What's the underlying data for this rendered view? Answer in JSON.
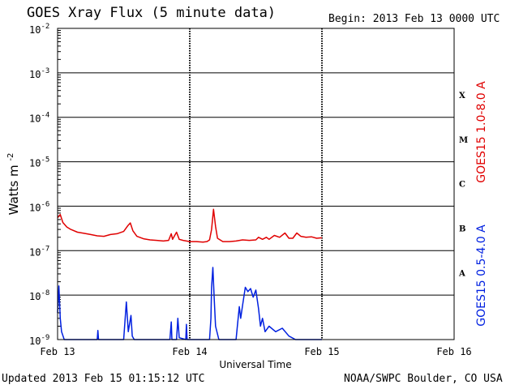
{
  "header": {
    "title": "GOES Xray Flux (5 minute data)",
    "begin": "Begin:  2013 Feb 13 0000 UTC"
  },
  "footer": {
    "updated": "Updated 2013 Feb 15 01:15:12 UTC",
    "credit": "NOAA/SWPC Boulder, CO USA"
  },
  "chart_data": {
    "type": "line",
    "title": "GOES Xray Flux (5 minute data)",
    "xlabel": "Universal Time",
    "ylabel": "Watts m",
    "ylabel_sup": "-2",
    "y_scale": "log",
    "ylim": [
      1e-09,
      0.01
    ],
    "y_ticks": [
      {
        "base": "10",
        "exp": "-2",
        "value": 0.01
      },
      {
        "base": "10",
        "exp": "-3",
        "value": 0.001
      },
      {
        "base": "10",
        "exp": "-4",
        "value": 0.0001
      },
      {
        "base": "10",
        "exp": "-5",
        "value": 1e-05
      },
      {
        "base": "10",
        "exp": "-6",
        "value": 1e-06
      },
      {
        "base": "10",
        "exp": "-7",
        "value": 1e-07
      },
      {
        "base": "10",
        "exp": "-8",
        "value": 1e-08
      },
      {
        "base": "10",
        "exp": "-9",
        "value": 1e-09
      }
    ],
    "xlim_days": [
      0,
      3
    ],
    "x_ticks": [
      {
        "label": "Feb 13",
        "day": 0
      },
      {
        "label": "Feb 14",
        "day": 1
      },
      {
        "label": "Feb 15",
        "day": 2
      },
      {
        "label": "Feb 16",
        "day": 3
      }
    ],
    "flare_classes": [
      {
        "label": "X",
        "value": 0.00032
      },
      {
        "label": "M",
        "value": 3.2e-05
      },
      {
        "label": "C",
        "value": 3.2e-06
      },
      {
        "label": "B",
        "value": 3.2e-07
      },
      {
        "label": "A",
        "value": 3.2e-08
      }
    ],
    "grid": true,
    "series": [
      {
        "name": "GOES15 1.0-8.0 A",
        "color": "#e00000",
        "points": [
          [
            0.0,
            5.5e-07
          ],
          [
            0.02,
            6.5e-07
          ],
          [
            0.04,
            4.3e-07
          ],
          [
            0.07,
            3.4e-07
          ],
          [
            0.1,
            3e-07
          ],
          [
            0.15,
            2.6e-07
          ],
          [
            0.2,
            2.45e-07
          ],
          [
            0.25,
            2.3e-07
          ],
          [
            0.3,
            2.15e-07
          ],
          [
            0.35,
            2.1e-07
          ],
          [
            0.4,
            2.3e-07
          ],
          [
            0.45,
            2.4e-07
          ],
          [
            0.5,
            2.7e-07
          ],
          [
            0.53,
            3.6e-07
          ],
          [
            0.55,
            4.2e-07
          ],
          [
            0.57,
            2.8e-07
          ],
          [
            0.6,
            2.1e-07
          ],
          [
            0.65,
            1.85e-07
          ],
          [
            0.7,
            1.75e-07
          ],
          [
            0.75,
            1.7e-07
          ],
          [
            0.8,
            1.65e-07
          ],
          [
            0.84,
            1.7e-07
          ],
          [
            0.86,
            2.4e-07
          ],
          [
            0.87,
            1.8e-07
          ],
          [
            0.9,
            2.6e-07
          ],
          [
            0.92,
            1.8e-07
          ],
          [
            0.95,
            1.7e-07
          ],
          [
            1.0,
            1.6e-07
          ],
          [
            1.05,
            1.6e-07
          ],
          [
            1.1,
            1.55e-07
          ],
          [
            1.13,
            1.6e-07
          ],
          [
            1.15,
            1.75e-07
          ],
          [
            1.165,
            3e-07
          ],
          [
            1.18,
            8.5e-07
          ],
          [
            1.195,
            3.5e-07
          ],
          [
            1.21,
            1.9e-07
          ],
          [
            1.25,
            1.6e-07
          ],
          [
            1.3,
            1.6e-07
          ],
          [
            1.35,
            1.65e-07
          ],
          [
            1.4,
            1.75e-07
          ],
          [
            1.45,
            1.7e-07
          ],
          [
            1.5,
            1.75e-07
          ],
          [
            1.52,
            2e-07
          ],
          [
            1.55,
            1.8e-07
          ],
          [
            1.58,
            2e-07
          ],
          [
            1.6,
            1.8e-07
          ],
          [
            1.64,
            2.2e-07
          ],
          [
            1.68,
            2e-07
          ],
          [
            1.72,
            2.5e-07
          ],
          [
            1.75,
            1.9e-07
          ],
          [
            1.78,
            1.9e-07
          ],
          [
            1.81,
            2.5e-07
          ],
          [
            1.84,
            2.1e-07
          ],
          [
            1.88,
            2e-07
          ],
          [
            1.92,
            2.05e-07
          ],
          [
            1.96,
            1.9e-07
          ],
          [
            2.0,
            1.95e-07
          ]
        ]
      },
      {
        "name": "GOES15 0.5-4.0 A",
        "color": "#0020e0",
        "points": [
          [
            0.0,
            4e-09
          ],
          [
            0.01,
            1.6e-08
          ],
          [
            0.02,
            3e-09
          ],
          [
            0.03,
            1.5e-09
          ],
          [
            0.05,
            1e-09
          ],
          [
            0.3,
            1e-09
          ],
          [
            0.305,
            1.6e-09
          ],
          [
            0.31,
            1e-09
          ],
          [
            0.5,
            1e-09
          ],
          [
            0.52,
            7e-09
          ],
          [
            0.535,
            1.5e-09
          ],
          [
            0.555,
            3.5e-09
          ],
          [
            0.565,
            1.2e-09
          ],
          [
            0.58,
            1e-09
          ],
          [
            0.85,
            1e-09
          ],
          [
            0.86,
            2.5e-09
          ],
          [
            0.865,
            1e-09
          ],
          [
            0.9,
            1e-09
          ],
          [
            0.91,
            3e-09
          ],
          [
            0.92,
            1.1e-09
          ],
          [
            0.97,
            1e-09
          ],
          [
            0.975,
            2.2e-09
          ],
          [
            0.98,
            1e-09
          ],
          [
            1.15,
            1e-09
          ],
          [
            1.16,
            3e-09
          ],
          [
            1.165,
            1.5e-08
          ],
          [
            1.175,
            4.2e-08
          ],
          [
            1.185,
            8e-09
          ],
          [
            1.195,
            2e-09
          ],
          [
            1.22,
            1e-09
          ],
          [
            1.35,
            1e-09
          ],
          [
            1.36,
            2e-09
          ],
          [
            1.375,
            5.5e-09
          ],
          [
            1.385,
            3e-09
          ],
          [
            1.4,
            6e-09
          ],
          [
            1.42,
            1.5e-08
          ],
          [
            1.44,
            1.2e-08
          ],
          [
            1.46,
            1.4e-08
          ],
          [
            1.48,
            9e-09
          ],
          [
            1.5,
            1.3e-08
          ],
          [
            1.52,
            5e-09
          ],
          [
            1.535,
            2e-09
          ],
          [
            1.55,
            3e-09
          ],
          [
            1.57,
            1.5e-09
          ],
          [
            1.6,
            2e-09
          ],
          [
            1.65,
            1.5e-09
          ],
          [
            1.7,
            1.8e-09
          ],
          [
            1.75,
            1.2e-09
          ],
          [
            1.8,
            1e-09
          ],
          [
            2.0,
            1e-09
          ]
        ]
      }
    ]
  }
}
